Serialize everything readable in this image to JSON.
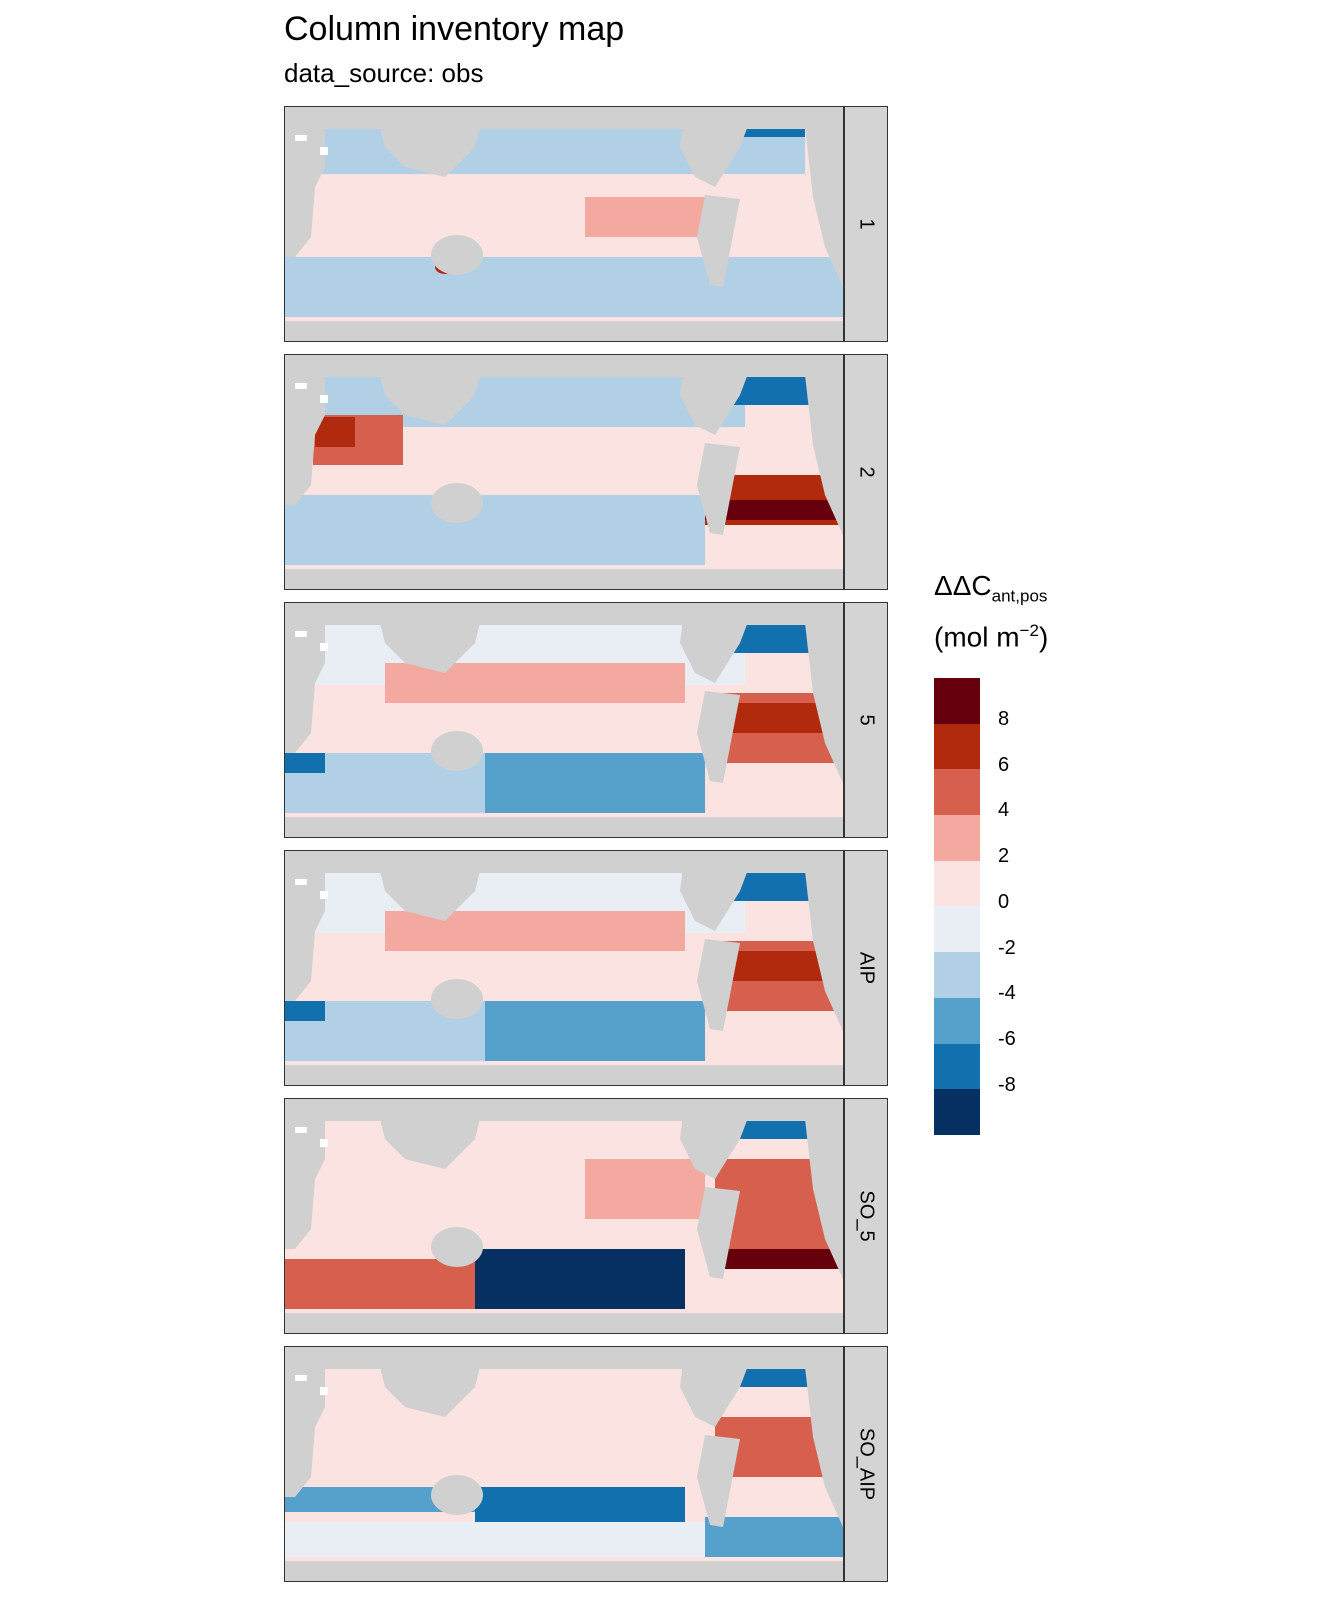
{
  "title": "Column inventory map",
  "subtitle": "data_source: obs",
  "panels": [
    {
      "label": "1",
      "pattern": "light"
    },
    {
      "label": "2",
      "pattern": "atl_red"
    },
    {
      "label": "5",
      "pattern": "atl_red_so_blue"
    },
    {
      "label": "AIP",
      "pattern": "atl_red_so_blue"
    },
    {
      "label": "SO_5",
      "pattern": "so_band_dark"
    },
    {
      "label": "SO_AIP",
      "pattern": "so_band_mid"
    }
  ],
  "legend": {
    "symbol": "ΔΔC",
    "subscript": "ant,pos",
    "unit_prefix": "(mol m",
    "unit_exp": "−2",
    "unit_suffix": ")",
    "ticks": [
      "8",
      "6",
      "4",
      "2",
      "0",
      "-2",
      "-4",
      "-6",
      "-8"
    ],
    "colors": [
      "#67000d",
      "#b22a0d",
      "#d6604d",
      "#f4a9a0",
      "#fbe3e1",
      "#e9eef4",
      "#b2d0e5",
      "#56a0cc",
      "#1170ad",
      "#053061"
    ]
  },
  "land_color": "#d0d0d0"
}
